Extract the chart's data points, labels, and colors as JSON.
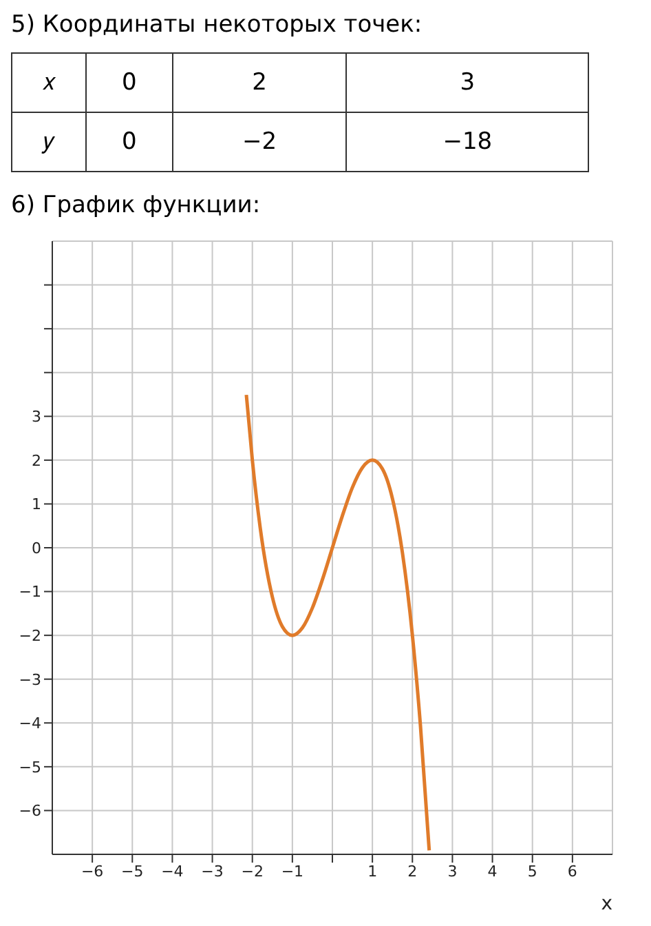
{
  "chart_data": [
    {
      "type": "other",
      "title": "5) Координаты некоторых точек:",
      "annotations": [
        "𝑥",
        "0",
        "2",
        "3",
        "𝑦",
        "0",
        "−2",
        "−18"
      ]
    },
    {
      "type": "line",
      "title": "6) График функции:",
      "xlabel": "x",
      "x": [
        -2.15,
        -2,
        -1.8,
        -1.5,
        -1.25,
        -1,
        -0.75,
        -0.5,
        -0.25,
        0,
        0.25,
        0.5,
        0.75,
        1,
        1.25,
        1.5,
        1.75,
        2,
        2.2,
        2.42
      ],
      "series": [
        {
          "color": "#e07b2a",
          "values": [
            3.49,
            2,
            0.43,
            -1.125,
            -1.8,
            -2,
            -1.83,
            -1.375,
            -0.73,
            0,
            0.73,
            1.375,
            1.83,
            2,
            1.8,
            1.125,
            -0.11,
            -2,
            -4.05,
            -6.91
          ]
        }
      ],
      "xlim": [
        -7,
        7
      ],
      "ylim": [
        -7,
        7
      ],
      "xticks": [
        -6,
        -5,
        -4,
        -3,
        -2,
        -1,
        {
          "value": 0,
          "label": null
        },
        1,
        2,
        3,
        4,
        5,
        6
      ],
      "yticks": [
        -6,
        -5,
        -4,
        -3,
        -2,
        -1,
        {
          "value": 0,
          "label": "0"
        },
        1,
        2,
        3,
        {
          "value": 4,
          "label": null
        },
        {
          "value": 5,
          "label": null
        },
        {
          "value": 6,
          "label": null
        }
      ],
      "grid": true,
      "marker": "none",
      "line_style": "solid"
    }
  ]
}
